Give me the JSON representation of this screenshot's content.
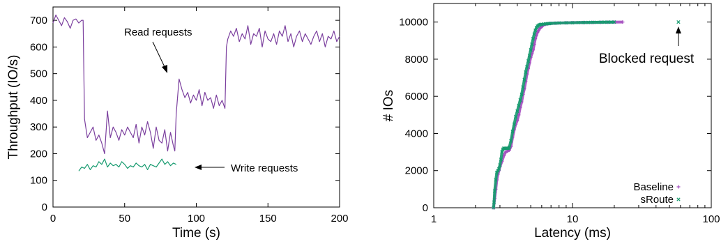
{
  "chart_data": [
    {
      "type": "line",
      "xlabel": "Time (s)",
      "ylabel": "Throughput (IO/s)",
      "xlim": [
        0,
        200
      ],
      "ylim": [
        0,
        750
      ],
      "xticks": [
        0,
        50,
        100,
        150,
        200
      ],
      "yticks": [
        0,
        100,
        200,
        300,
        400,
        500,
        600,
        700
      ],
      "xtick_labels": [
        "0",
        "50",
        "100",
        "150",
        "200"
      ],
      "ytick_labels": [
        "0",
        "100",
        "200",
        "300",
        "400",
        "500",
        "600",
        "700"
      ],
      "colors": {
        "read": "#7b3f9e",
        "write": "#159a6e"
      },
      "grid": false,
      "annotations": {
        "read": "Read requests",
        "write": "Write requests"
      },
      "series": [
        {
          "key": "read",
          "x": [
            0,
            2,
            4,
            6,
            8,
            10,
            12,
            14,
            16,
            18,
            20,
            21,
            22,
            24,
            26,
            28,
            30,
            32,
            34,
            36,
            38,
            40,
            42,
            44,
            46,
            48,
            50,
            52,
            54,
            56,
            58,
            60,
            62,
            64,
            66,
            68,
            70,
            72,
            74,
            76,
            78,
            80,
            82,
            84,
            85,
            86,
            88,
            90,
            92,
            94,
            96,
            98,
            100,
            102,
            104,
            106,
            108,
            110,
            112,
            114,
            116,
            118,
            120,
            121,
            122,
            124,
            126,
            128,
            130,
            132,
            134,
            136,
            138,
            140,
            142,
            144,
            146,
            148,
            150,
            152,
            154,
            156,
            158,
            160,
            162,
            164,
            166,
            168,
            170,
            172,
            174,
            176,
            178,
            180,
            182,
            184,
            186,
            188,
            190,
            192,
            194,
            196,
            198,
            200
          ],
          "y": [
            690,
            720,
            700,
            680,
            710,
            695,
            670,
            700,
            705,
            690,
            700,
            700,
            330,
            260,
            280,
            300,
            250,
            270,
            240,
            200,
            360,
            260,
            300,
            280,
            250,
            290,
            270,
            300,
            280,
            260,
            310,
            240,
            300,
            270,
            320,
            280,
            220,
            300,
            250,
            240,
            290,
            210,
            280,
            230,
            210,
            350,
            480,
            440,
            410,
            430,
            390,
            420,
            400,
            440,
            380,
            430,
            400,
            410,
            370,
            420,
            380,
            400,
            370,
            600,
            630,
            660,
            640,
            670,
            620,
            650,
            630,
            680,
            610,
            650,
            640,
            670,
            600,
            660,
            630,
            620,
            650,
            610,
            660,
            640,
            680,
            620,
            650,
            600,
            640,
            660,
            620,
            650,
            630,
            610,
            640,
            660,
            620,
            650,
            600,
            640,
            630,
            660,
            620,
            640
          ]
        },
        {
          "key": "write",
          "x": [
            18,
            20,
            22,
            24,
            26,
            28,
            30,
            32,
            34,
            36,
            38,
            40,
            42,
            44,
            46,
            48,
            50,
            52,
            54,
            56,
            58,
            60,
            62,
            64,
            66,
            68,
            70,
            72,
            74,
            76,
            78,
            80,
            82,
            84,
            86
          ],
          "y": [
            135,
            150,
            145,
            160,
            140,
            155,
            150,
            170,
            160,
            180,
            150,
            165,
            155,
            160,
            150,
            170,
            160,
            145,
            155,
            150,
            165,
            155,
            150,
            160,
            140,
            160,
            155,
            150,
            165,
            180,
            160,
            170,
            155,
            165,
            160
          ]
        }
      ]
    },
    {
      "type": "scatter",
      "xlabel": "Latency (ms)",
      "ylabel": "# IOs",
      "xscale": "log",
      "xlim": [
        1,
        100
      ],
      "ylim": [
        0,
        11000
      ],
      "xticks": [
        1,
        10,
        100
      ],
      "yticks": [
        0,
        2000,
        4000,
        6000,
        8000,
        10000
      ],
      "xtick_labels": [
        "1",
        "10",
        "100"
      ],
      "ytick_labels": [
        "0",
        "2000",
        "4000",
        "6000",
        "8000",
        "10000"
      ],
      "colors": {
        "Baseline": "#a44dbf",
        "sRoute": "#159a6e"
      },
      "grid": false,
      "legend_position": "bottom-right",
      "annotation": "Blocked request",
      "series": [
        {
          "name": "Baseline",
          "x": [
            2.7,
            2.75,
            2.8,
            2.85,
            2.9,
            2.95,
            3.0,
            3.1,
            3.2,
            3.3,
            3.4,
            3.5,
            3.6,
            3.7,
            3.8,
            3.9,
            4.0,
            4.1,
            4.2,
            4.3,
            4.4,
            4.5,
            4.6,
            4.7,
            4.8,
            4.9,
            5.0,
            5.1,
            5.2,
            5.3,
            5.4,
            5.5,
            5.6,
            5.7,
            5.8,
            5.9,
            6.0,
            6.1,
            6.2,
            6.4,
            6.6,
            6.8,
            7.0,
            7.5,
            8.0,
            9.0,
            10.0,
            12.0,
            14.0,
            16.0,
            18.0,
            20.0,
            23.0
          ],
          "y": [
            0,
            500,
            1000,
            1500,
            1800,
            2000,
            2200,
            2500,
            2800,
            3000,
            3050,
            3100,
            3300,
            3800,
            4200,
            4500,
            4700,
            5000,
            5400,
            5700,
            6100,
            6400,
            6800,
            7200,
            7500,
            7800,
            8100,
            8300,
            8500,
            8800,
            9100,
            9300,
            9450,
            9550,
            9650,
            9700,
            9750,
            9800,
            9850,
            9880,
            9900,
            9920,
            9930,
            9940,
            9950,
            9960,
            9970,
            9975,
            9980,
            9985,
            9990,
            9995,
            10000
          ]
        },
        {
          "name": "sRoute",
          "x": [
            2.7,
            2.72,
            2.75,
            2.8,
            2.85,
            2.9,
            2.95,
            3.0,
            3.05,
            3.1,
            3.15,
            3.2,
            3.25,
            3.3,
            3.35,
            3.4,
            3.45,
            3.5,
            3.6,
            3.7,
            3.8,
            3.9,
            4.0,
            4.1,
            4.2,
            4.3,
            4.4,
            4.5,
            4.6,
            4.7,
            4.8,
            4.9,
            5.0,
            5.1,
            5.2,
            5.3,
            5.4,
            5.5,
            5.6,
            5.7,
            5.8,
            5.9,
            6.0,
            6.2,
            6.4,
            6.6,
            6.8,
            7.0,
            7.5,
            8.0,
            9.0,
            10.0,
            11.0,
            12.0,
            13.0,
            14.0,
            15.0,
            16.0,
            17.0,
            18.0,
            19.0,
            20.0,
            58.0
          ],
          "y": [
            0,
            300,
            900,
            1500,
            1900,
            2000,
            2100,
            2300,
            2600,
            3000,
            3150,
            3200,
            3200,
            3200,
            3200,
            3200,
            3200,
            3250,
            3600,
            4100,
            4500,
            4900,
            5200,
            5500,
            5800,
            6100,
            6500,
            6900,
            7300,
            7600,
            7900,
            8200,
            8500,
            8800,
            9100,
            9350,
            9550,
            9700,
            9780,
            9820,
            9850,
            9870,
            9880,
            9890,
            9900,
            9910,
            9920,
            9930,
            9940,
            9950,
            9960,
            9965,
            9970,
            9975,
            9980,
            9985,
            9988,
            9990,
            9993,
            9995,
            9997,
            9999,
            10000
          ]
        }
      ]
    }
  ]
}
